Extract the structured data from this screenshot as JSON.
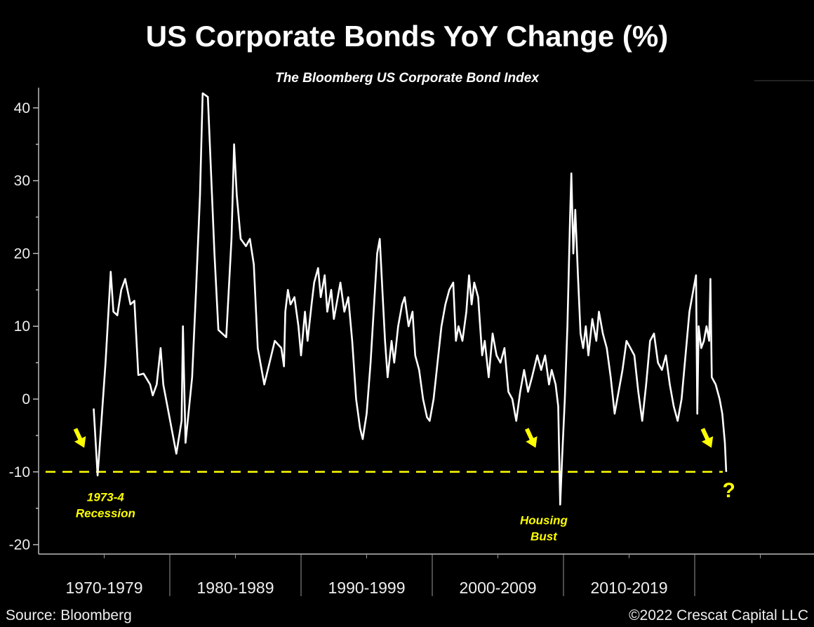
{
  "chart_data": {
    "type": "line",
    "title": "US Corporate Bonds YoY Change (%)",
    "subtitle": "The Bloomberg US Corporate Bond Index",
    "xlabel": "",
    "ylabel": "",
    "ylim": [
      -20,
      45
    ],
    "xlim": [
      1970,
      2029
    ],
    "yticks": [
      40,
      30,
      20,
      10,
      0,
      -10,
      -20
    ],
    "x_categories": [
      "1970-1979",
      "1980-1989",
      "1990-1999",
      "2000-2009",
      "2010-2019"
    ],
    "grid": false,
    "reference_line": {
      "value": -10,
      "style": "dashed",
      "color": "#ffff00"
    },
    "annotations": [
      {
        "text": [
          "1973-4",
          "Recession"
        ],
        "x": 1975.1,
        "y": -14
      },
      {
        "text": [
          "Housing",
          "Bust"
        ],
        "x": 2008.5,
        "y": -17.2
      },
      {
        "text": [
          "?"
        ],
        "x": 2022.6,
        "y": -13.5
      }
    ],
    "arrows": [
      {
        "x": 1973.3,
        "y": -6
      },
      {
        "x": 2007.7,
        "y": -6
      },
      {
        "x": 2021.1,
        "y": -6
      }
    ],
    "series": [
      {
        "name": "Bloomberg US Corporate Bond Index YoY %",
        "color": "#ffffff",
        "points": [
          [
            1974.2,
            -1.3
          ],
          [
            1974.5,
            -10.5
          ],
          [
            1975.1,
            5
          ],
          [
            1975.5,
            17.5
          ],
          [
            1975.7,
            12
          ],
          [
            1976.0,
            11.5
          ],
          [
            1976.3,
            15
          ],
          [
            1976.6,
            16.5
          ],
          [
            1977.0,
            13
          ],
          [
            1977.3,
            13.5
          ],
          [
            1977.6,
            3.3
          ],
          [
            1978.0,
            3.5
          ],
          [
            1978.5,
            2
          ],
          [
            1978.7,
            0.5
          ],
          [
            1979.0,
            2
          ],
          [
            1979.3,
            7
          ],
          [
            1979.5,
            2
          ],
          [
            1980.5,
            -7.5
          ],
          [
            1980.9,
            -3
          ],
          [
            1981.0,
            10
          ],
          [
            1981.2,
            -6
          ],
          [
            1981.7,
            3
          ],
          [
            1982.0,
            15
          ],
          [
            1982.3,
            28
          ],
          [
            1982.5,
            42
          ],
          [
            1982.9,
            41.5
          ],
          [
            1983.4,
            20
          ],
          [
            1983.7,
            9.5
          ],
          [
            1984.3,
            8.5
          ],
          [
            1984.7,
            22
          ],
          [
            1984.9,
            35
          ],
          [
            1985.1,
            28
          ],
          [
            1985.4,
            22
          ],
          [
            1985.8,
            21
          ],
          [
            1986.1,
            22
          ],
          [
            1986.4,
            18.5
          ],
          [
            1986.7,
            7
          ],
          [
            1987.2,
            2
          ],
          [
            1988.0,
            8
          ],
          [
            1988.5,
            7
          ],
          [
            1988.7,
            4.5
          ],
          [
            1988.8,
            12
          ],
          [
            1989.0,
            15
          ],
          [
            1989.2,
            13
          ],
          [
            1989.5,
            14
          ],
          [
            1989.8,
            10
          ],
          [
            1990.0,
            6
          ],
          [
            1990.3,
            12
          ],
          [
            1990.5,
            8
          ],
          [
            1990.8,
            13
          ],
          [
            1991.0,
            16
          ],
          [
            1991.3,
            18
          ],
          [
            1991.5,
            14
          ],
          [
            1991.8,
            17
          ],
          [
            1992.0,
            12
          ],
          [
            1992.3,
            15
          ],
          [
            1992.5,
            11
          ],
          [
            1992.8,
            14
          ],
          [
            1993.0,
            16
          ],
          [
            1993.3,
            12
          ],
          [
            1993.6,
            14
          ],
          [
            1993.9,
            8
          ],
          [
            1994.2,
            0
          ],
          [
            1994.5,
            -4
          ],
          [
            1994.7,
            -5.5
          ],
          [
            1995.0,
            -2
          ],
          [
            1995.3,
            5
          ],
          [
            1995.6,
            14
          ],
          [
            1995.8,
            20
          ],
          [
            1996.0,
            22
          ],
          [
            1996.2,
            15
          ],
          [
            1996.4,
            8
          ],
          [
            1996.6,
            3
          ],
          [
            1996.9,
            8
          ],
          [
            1997.1,
            5
          ],
          [
            1997.4,
            10
          ],
          [
            1997.7,
            13
          ],
          [
            1997.9,
            14
          ],
          [
            1998.2,
            10
          ],
          [
            1998.5,
            12
          ],
          [
            1998.7,
            6
          ],
          [
            1999.0,
            4
          ],
          [
            1999.3,
            0
          ],
          [
            1999.6,
            -2.5
          ],
          [
            1999.8,
            -3
          ],
          [
            2000.1,
            0
          ],
          [
            2000.4,
            5
          ],
          [
            2000.7,
            10
          ],
          [
            2001.0,
            13
          ],
          [
            2001.3,
            15
          ],
          [
            2001.6,
            16
          ],
          [
            2001.8,
            8
          ],
          [
            2002.0,
            10
          ],
          [
            2002.3,
            8
          ],
          [
            2002.6,
            12
          ],
          [
            2002.8,
            17
          ],
          [
            2003.0,
            13
          ],
          [
            2003.2,
            16
          ],
          [
            2003.5,
            14
          ],
          [
            2003.8,
            6
          ],
          [
            2004.0,
            8
          ],
          [
            2004.3,
            3
          ],
          [
            2004.6,
            9
          ],
          [
            2004.9,
            6
          ],
          [
            2005.2,
            5
          ],
          [
            2005.5,
            7
          ],
          [
            2005.8,
            1
          ],
          [
            2006.1,
            0
          ],
          [
            2006.4,
            -3
          ],
          [
            2006.7,
            1
          ],
          [
            2007.0,
            4
          ],
          [
            2007.3,
            1
          ],
          [
            2007.6,
            3
          ],
          [
            2008.0,
            6
          ],
          [
            2008.3,
            4
          ],
          [
            2008.6,
            6
          ],
          [
            2008.9,
            2
          ],
          [
            2009.1,
            4
          ],
          [
            2009.4,
            2
          ],
          [
            2009.6,
            -1
          ],
          [
            2009.75,
            -14.5
          ],
          [
            2009.9,
            -8
          ],
          [
            2010.1,
            0
          ],
          [
            2010.3,
            10
          ],
          [
            2010.5,
            25
          ],
          [
            2010.6,
            31
          ],
          [
            2010.75,
            20
          ],
          [
            2010.9,
            26
          ],
          [
            2011.1,
            17
          ],
          [
            2011.3,
            9
          ],
          [
            2011.5,
            7
          ],
          [
            2011.7,
            10
          ],
          [
            2011.9,
            6
          ],
          [
            2012.2,
            11
          ],
          [
            2012.5,
            8
          ],
          [
            2012.7,
            12
          ],
          [
            2013.0,
            9
          ],
          [
            2013.3,
            7
          ],
          [
            2013.6,
            3
          ],
          [
            2013.9,
            -2
          ],
          [
            2014.2,
            1
          ],
          [
            2014.5,
            4
          ],
          [
            2014.8,
            8
          ],
          [
            2015.1,
            7
          ],
          [
            2015.4,
            6
          ],
          [
            2015.7,
            1
          ],
          [
            2016.0,
            -3
          ],
          [
            2016.3,
            2
          ],
          [
            2016.6,
            8
          ],
          [
            2016.9,
            9
          ],
          [
            2017.2,
            5
          ],
          [
            2017.5,
            4
          ],
          [
            2017.8,
            6
          ],
          [
            2018.1,
            2
          ],
          [
            2018.4,
            -1
          ],
          [
            2018.7,
            -3
          ],
          [
            2019.0,
            0
          ],
          [
            2019.3,
            6
          ],
          [
            2019.6,
            12
          ],
          [
            2019.9,
            15
          ],
          [
            2020.1,
            17
          ],
          [
            2020.2,
            -2
          ],
          [
            2020.3,
            10
          ],
          [
            2020.5,
            7
          ],
          [
            2020.7,
            8
          ],
          [
            2020.9,
            10
          ],
          [
            2021.1,
            8
          ],
          [
            2021.2,
            16.5
          ],
          [
            2021.3,
            3
          ],
          [
            2021.6,
            2
          ],
          [
            2021.9,
            0
          ],
          [
            2022.1,
            -2
          ],
          [
            2022.3,
            -6
          ],
          [
            2022.4,
            -10
          ]
        ]
      }
    ]
  },
  "footer": {
    "source": "Source: Bloomberg",
    "copyright": "©2022 Crescat Capital LLC"
  }
}
